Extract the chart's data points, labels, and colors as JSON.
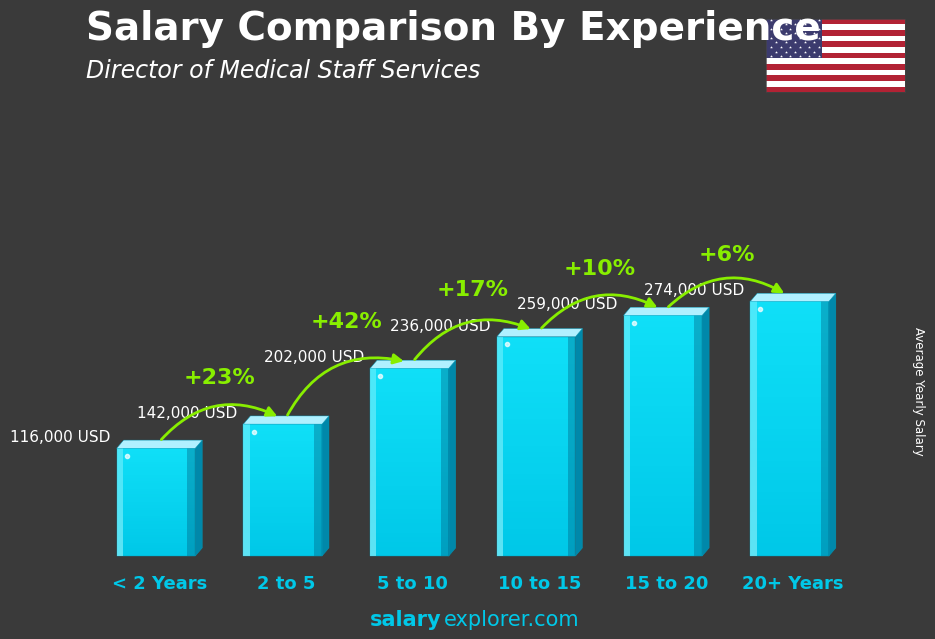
{
  "title": "Salary Comparison By Experience",
  "subtitle": "Director of Medical Staff Services",
  "categories": [
    "< 2 Years",
    "2 to 5",
    "5 to 10",
    "10 to 15",
    "15 to 20",
    "20+ Years"
  ],
  "values": [
    116000,
    142000,
    202000,
    236000,
    259000,
    274000
  ],
  "labels": [
    "116,000 USD",
    "142,000 USD",
    "202,000 USD",
    "236,000 USD",
    "259,000 USD",
    "274,000 USD"
  ],
  "pct_changes": [
    "+23%",
    "+42%",
    "+17%",
    "+10%",
    "+6%"
  ],
  "bar_face_color": "#00C8E8",
  "bar_light_color": "#80E8FF",
  "bar_dark_color": "#0090BB",
  "bar_top_color": "#A0F0FF",
  "pct_color": "#88EE00",
  "label_color": "#FFFFFF",
  "bg_color": "#3a3a3a",
  "ylabel": "Average Yearly Salary",
  "footer_salary": "salary",
  "footer_rest": "explorer.com",
  "footer_color": "#00C8E8",
  "title_color": "#FFFFFF",
  "subtitle_color": "#FFFFFF",
  "xlabel_color": "#00C8E8",
  "title_fontsize": 28,
  "subtitle_fontsize": 17,
  "label_fontsize": 11,
  "pct_fontsize": 16,
  "cat_fontsize": 13,
  "footer_fontsize": 15,
  "ylabel_fontsize": 8.5
}
